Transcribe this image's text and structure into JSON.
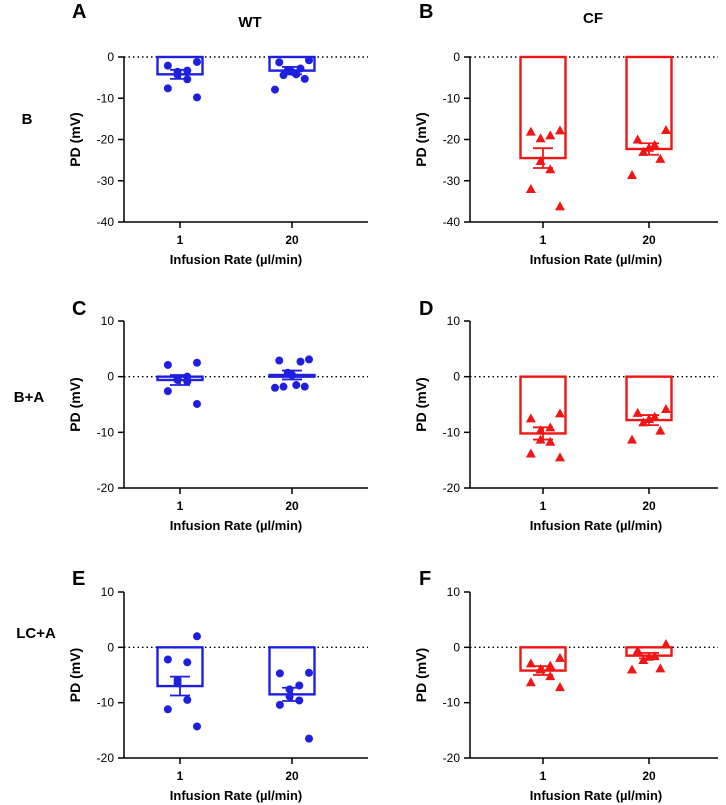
{
  "column_titles": [
    "WT",
    "CF"
  ],
  "row_labels": [
    "B",
    "B+A",
    "LC+A"
  ],
  "colors": {
    "WT": "#1f1fe0",
    "CF": "#f01616",
    "axis": "#000000"
  },
  "chart_data": [
    {
      "panel": "A",
      "genotype": "WT",
      "condition": "B",
      "type": "bar",
      "marker": "circle",
      "xlabel": "Infusion Rate (µl/min)",
      "ylabel": "PD (mV)",
      "ylim": [
        -40,
        0
      ],
      "yticks": [
        0,
        -10,
        -20,
        -30,
        -40
      ],
      "categories": [
        "1",
        "20"
      ],
      "means": [
        -4.2,
        -3.3
      ],
      "sem": [
        1.1,
        0.9
      ],
      "points": [
        [
          -1.2,
          -2.1,
          -3.3,
          -3.6,
          -4.3,
          -5.4,
          -7.6,
          -9.8
        ],
        [
          -0.8,
          -1.3,
          -2.8,
          -3.2,
          -3.6,
          -4.2,
          -4.4,
          -5.3,
          -7.9
        ]
      ]
    },
    {
      "panel": "B",
      "genotype": "CF",
      "condition": "B",
      "type": "bar",
      "marker": "triangle",
      "xlabel": "Infusion Rate (µl/min)",
      "ylabel": "PD (mV)",
      "ylim": [
        -40,
        0
      ],
      "yticks": [
        0,
        -10,
        -20,
        -30,
        -40
      ],
      "categories": [
        "1",
        "20"
      ],
      "means": [
        -24.5,
        -22.3
      ],
      "sem": [
        2.4,
        1.4
      ],
      "points": [
        [
          -17.8,
          -18.1,
          -19.0,
          -19.7,
          -25.2,
          -27.2,
          -32.0,
          -36.2
        ],
        [
          -17.7,
          -20.0,
          -21.3,
          -22.0,
          -23.0,
          -24.7,
          -28.6
        ]
      ]
    },
    {
      "panel": "C",
      "genotype": "WT",
      "condition": "B+A",
      "type": "bar",
      "marker": "circle",
      "xlabel": "Infusion Rate (µl/min)",
      "ylabel": "PD (mV)",
      "ylim": [
        -20,
        10
      ],
      "yticks": [
        10,
        0,
        -10,
        -20
      ],
      "categories": [
        "1",
        "20"
      ],
      "means": [
        -0.6,
        0.3
      ],
      "sem": [
        0.9,
        0.8
      ],
      "points": [
        [
          2.5,
          2.1,
          0.0,
          -0.3,
          -0.6,
          -0.9,
          -2.6,
          -4.9
        ],
        [
          3.1,
          2.9,
          2.7,
          0.7,
          0.3,
          -1.5,
          -1.8,
          -1.8,
          -2.0
        ]
      ]
    },
    {
      "panel": "D",
      "genotype": "CF",
      "condition": "B+A",
      "type": "bar",
      "marker": "triangle",
      "xlabel": "Infusion Rate (µl/min)",
      "ylabel": "PD (mV)",
      "ylim": [
        -20,
        10
      ],
      "yticks": [
        10,
        0,
        -10,
        -20
      ],
      "categories": [
        "1",
        "20"
      ],
      "means": [
        -10.2,
        -7.8
      ],
      "sem": [
        1.1,
        0.9
      ],
      "points": [
        [
          -6.6,
          -7.5,
          -9.1,
          -9.6,
          -11.3,
          -11.7,
          -13.8,
          -14.5
        ],
        [
          -5.8,
          -6.5,
          -7.2,
          -7.6,
          -8.2,
          -9.7,
          -11.3
        ]
      ]
    },
    {
      "panel": "E",
      "genotype": "WT",
      "condition": "LC+A",
      "type": "bar",
      "marker": "circle",
      "xlabel": "Infusion Rate (µl/min)",
      "ylabel": "PD (mV)",
      "ylim": [
        -20,
        10
      ],
      "yticks": [
        10,
        0,
        -10,
        -20
      ],
      "categories": [
        "1",
        "20"
      ],
      "means": [
        -7.0,
        -8.5
      ],
      "sem": [
        1.7,
        1.2
      ],
      "points": [
        [
          2.0,
          -2.2,
          -2.7,
          -5.9,
          -6.5,
          -9.5,
          -11.2,
          -14.3
        ],
        [
          -4.6,
          -4.7,
          -6.9,
          -7.6,
          -8.9,
          -9.6,
          -10.4,
          -16.5
        ]
      ]
    },
    {
      "panel": "F",
      "genotype": "CF",
      "condition": "LC+A",
      "type": "bar",
      "marker": "triangle",
      "xlabel": "Infusion Rate (µl/min)",
      "ylabel": "PD (mV)",
      "ylim": [
        -20,
        10
      ],
      "yticks": [
        10,
        0,
        -10,
        -20
      ],
      "categories": [
        "1",
        "20"
      ],
      "means": [
        -4.2,
        -1.5
      ],
      "sem": [
        0.8,
        0.5
      ],
      "points": [
        [
          -1.9,
          -2.9,
          -3.3,
          -3.9,
          -4.0,
          -5.2,
          -6.3,
          -7.2
        ],
        [
          0.6,
          -0.6,
          -1.6,
          -1.7,
          -2.3,
          -3.8,
          -4.0
        ]
      ]
    }
  ]
}
